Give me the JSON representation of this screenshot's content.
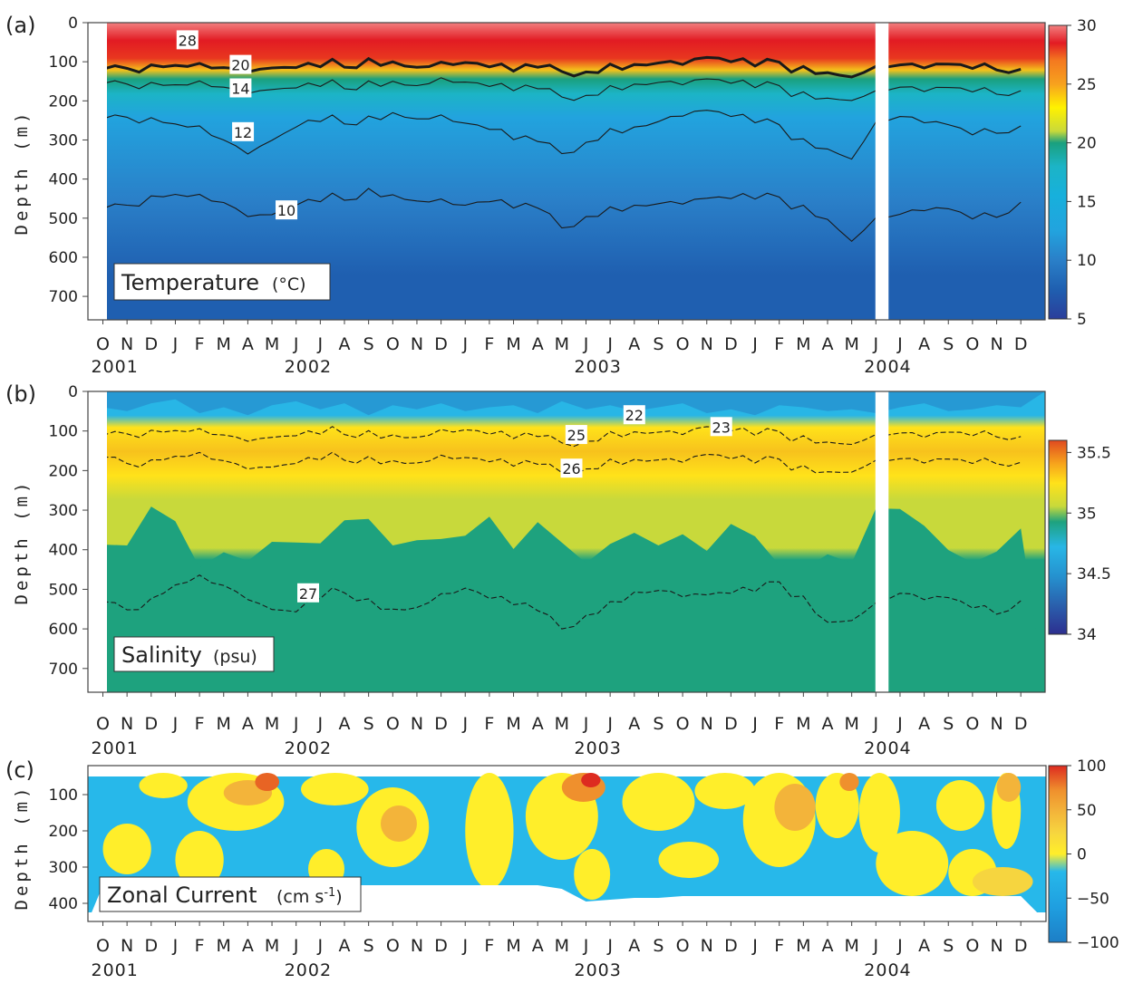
{
  "colors": {
    "temp_scale": [
      "#2b3e9b",
      "#1f5fb0",
      "#2a7fc8",
      "#22a3de",
      "#17b0dc",
      "#1cb4c6",
      "#1aa07e",
      "#2fa663",
      "#c9d93a",
      "#fff200",
      "#f9c81b",
      "#f7a21e",
      "#f4791f",
      "#e8371f",
      "#e21b23",
      "#f28080"
    ],
    "sal_scale": [
      "#2d2f8f",
      "#2a60ad",
      "#2592cf",
      "#28b6e6",
      "#1ea27e",
      "#c8d93b",
      "#ffe21a",
      "#f7a41c",
      "#e76e21",
      "#e04a20"
    ],
    "cur_scale": [
      "#1d7ec6",
      "#1f9fe0",
      "#27b8ea",
      "#3fbfe3",
      "#ffee2a",
      "#f6d53f",
      "#f3b43a",
      "#ef902d",
      "#e86424",
      "#dd2b20"
    ]
  },
  "chart_data": [
    {
      "panel": "(a)",
      "type": "heatmap",
      "title": "Temperature",
      "unit": "(°C)",
      "ylabel": "Depth (m)",
      "ylim": [
        0,
        760
      ],
      "yticks": [
        "0",
        "100",
        "200",
        "300",
        "400",
        "500",
        "600",
        "700"
      ],
      "ytick_values": [
        0,
        100,
        200,
        300,
        400,
        500,
        600,
        700
      ],
      "months": [
        "O",
        "N",
        "D",
        "J",
        "F",
        "M",
        "A",
        "M",
        "J",
        "J",
        "A",
        "S",
        "O",
        "N",
        "D",
        "J",
        "F",
        "M",
        "A",
        "M",
        "J",
        "J",
        "A",
        "S",
        "O",
        "N",
        "D",
        "J",
        "F",
        "M",
        "A",
        "M",
        "J",
        "J",
        "A",
        "S",
        "O",
        "N",
        "D"
      ],
      "years": [
        {
          "label": "2001",
          "month_index": 0
        },
        {
          "label": "2002",
          "month_index": 8
        },
        {
          "label": "2003",
          "month_index": 20
        },
        {
          "label": "2004",
          "month_index": 32
        }
      ],
      "colorbar": {
        "ticks": [
          "30",
          "25",
          "20",
          "15",
          "10",
          "5"
        ],
        "tick_values": [
          30,
          25,
          20,
          15,
          10,
          5
        ],
        "range": [
          5,
          30
        ]
      },
      "contour_labels": [
        {
          "text": "28",
          "month": 3.5,
          "depth": 45
        },
        {
          "text": "20",
          "month": 5.7,
          "depth": 108
        },
        {
          "text": "14",
          "month": 5.7,
          "depth": 168
        },
        {
          "text": "12",
          "month": 5.8,
          "depth": 280
        },
        {
          "text": "10",
          "month": 7.6,
          "depth": 480
        }
      ],
      "contours": [
        {
          "level": 10,
          "depth_by_month": [
            485,
            470,
            440,
            430,
            445,
            460,
            490,
            500,
            470,
            455,
            445,
            430,
            440,
            450,
            460,
            470,
            455,
            465,
            480,
            525,
            490,
            480,
            470,
            460,
            455,
            455,
            450,
            445,
            455,
            470,
            500,
            550,
            505,
            490,
            475,
            485,
            505,
            495,
            450
          ]
        },
        {
          "level": 12,
          "depth_by_month": [
            255,
            245,
            240,
            250,
            270,
            300,
            330,
            310,
            270,
            250,
            250,
            245,
            230,
            240,
            245,
            260,
            270,
            290,
            310,
            335,
            300,
            280,
            270,
            250,
            230,
            230,
            240,
            250,
            270,
            300,
            320,
            340,
            260,
            240,
            250,
            270,
            290,
            280,
            255
          ]
        },
        {
          "level": 14,
          "depth_by_month": [
            165,
            160,
            150,
            150,
            155,
            165,
            175,
            180,
            170,
            160,
            160,
            155,
            150,
            155,
            150,
            155,
            160,
            165,
            175,
            190,
            180,
            170,
            160,
            150,
            150,
            150,
            155,
            160,
            170,
            180,
            190,
            190,
            180,
            165,
            170,
            175,
            180,
            180,
            165
          ]
        },
        {
          "level": 20,
          "depth_by_month": [
            128,
            120,
            105,
            100,
            110,
            115,
            120,
            125,
            118,
            110,
            105,
            98,
            100,
            108,
            110,
            105,
            110,
            115,
            120,
            125,
            120,
            115,
            110,
            100,
            98,
            95,
            100,
            105,
            110,
            115,
            125,
            130,
            118,
            108,
            110,
            115,
            120,
            118,
            110
          ]
        }
      ],
      "gaps": [
        {
          "from_month": 31.98,
          "to_month": 32.3
        }
      ]
    },
    {
      "panel": "(b)",
      "type": "heatmap",
      "title": "Salinity",
      "unit": "(psu)",
      "ylabel": "Depth (m)",
      "ylim": [
        0,
        760
      ],
      "yticks": [
        "0",
        "100",
        "200",
        "300",
        "400",
        "500",
        "600",
        "700"
      ],
      "ytick_values": [
        0,
        100,
        200,
        300,
        400,
        500,
        600,
        700
      ],
      "months": [
        "O",
        "N",
        "D",
        "J",
        "F",
        "M",
        "A",
        "M",
        "J",
        "J",
        "A",
        "S",
        "O",
        "N",
        "D",
        "J",
        "F",
        "M",
        "A",
        "M",
        "J",
        "J",
        "A",
        "S",
        "O",
        "N",
        "D",
        "J",
        "F",
        "M",
        "A",
        "M",
        "J",
        "J",
        "A",
        "S",
        "O",
        "N",
        "D"
      ],
      "years": [
        {
          "label": "2001",
          "month_index": 0
        },
        {
          "label": "2002",
          "month_index": 8
        },
        {
          "label": "2003",
          "month_index": 20
        },
        {
          "label": "2004",
          "month_index": 32
        }
      ],
      "colorbar": {
        "ticks": [
          "35.5",
          "35",
          "34.5",
          "34"
        ],
        "tick_values": [
          35.5,
          35,
          34.5,
          34
        ],
        "range": [
          34,
          35.6
        ]
      },
      "contour_labels": [
        {
          "text": "22",
          "month": 22.0,
          "depth": 60
        },
        {
          "text": "25",
          "month": 19.6,
          "depth": 110
        },
        {
          "text": "23",
          "month": 25.6,
          "depth": 90
        },
        {
          "text": "26",
          "month": 19.4,
          "depth": 195
        },
        {
          "text": "27",
          "month": 8.5,
          "depth": 510
        }
      ],
      "contours": [
        {
          "level": 27,
          "depth_by_month": [
            540,
            555,
            520,
            480,
            470,
            490,
            520,
            560,
            560,
            520,
            500,
            530,
            550,
            540,
            520,
            500,
            520,
            530,
            560,
            600,
            560,
            540,
            510,
            500,
            510,
            520,
            510,
            500,
            490,
            520,
            580,
            570,
            540,
            510,
            520,
            530,
            550,
            560,
            520
          ]
        },
        {
          "level": 26,
          "depth_by_month": [
            175,
            185,
            170,
            155,
            160,
            175,
            190,
            200,
            185,
            170,
            165,
            170,
            175,
            175,
            170,
            170,
            175,
            180,
            190,
            205,
            190,
            180,
            175,
            170,
            170,
            165,
            170,
            175,
            180,
            190,
            200,
            195,
            180,
            170,
            175,
            180,
            185,
            180,
            170
          ]
        },
        {
          "level": 25,
          "depth_by_month": [
            120,
            110,
            95,
            90,
            100,
            110,
            120,
            125,
            115,
            105,
            100,
            105,
            110,
            110,
            105,
            100,
            105,
            110,
            120,
            130,
            120,
            110,
            105,
            100,
            100,
            95,
            100,
            105,
            110,
            115,
            125,
            125,
            115,
            105,
            110,
            112,
            115,
            112,
            105
          ]
        }
      ],
      "gaps": [
        {
          "from_month": 31.98,
          "to_month": 32.3
        }
      ]
    },
    {
      "panel": "(c)",
      "type": "heatmap",
      "title": "Zonal Current",
      "unit": "(cm s-1)",
      "unit_base": "(cm s",
      "unit_exp": "-1",
      "unit_close": ")",
      "ylabel": "Depth (m)",
      "ylim": [
        20,
        450
      ],
      "yticks": [
        "100",
        "200",
        "300",
        "400"
      ],
      "ytick_values": [
        100,
        200,
        300,
        400
      ],
      "months": [
        "O",
        "N",
        "D",
        "J",
        "F",
        "M",
        "A",
        "M",
        "J",
        "J",
        "A",
        "S",
        "O",
        "N",
        "D",
        "J",
        "F",
        "M",
        "A",
        "M",
        "J",
        "J",
        "A",
        "S",
        "O",
        "N",
        "D",
        "J",
        "F",
        "M",
        "A",
        "M",
        "J",
        "J",
        "A",
        "S",
        "O",
        "N",
        "D"
      ],
      "years": [
        {
          "label": "2001",
          "month_index": 0
        },
        {
          "label": "2002",
          "month_index": 8
        },
        {
          "label": "2003",
          "month_index": 20
        },
        {
          "label": "2004",
          "month_index": 32
        }
      ],
      "colorbar": {
        "ticks": [
          "100",
          "50",
          "0",
          "−50",
          "−100"
        ],
        "tick_values": [
          100,
          50,
          0,
          -50,
          -100
        ],
        "range": [
          -100,
          100
        ]
      }
    }
  ]
}
